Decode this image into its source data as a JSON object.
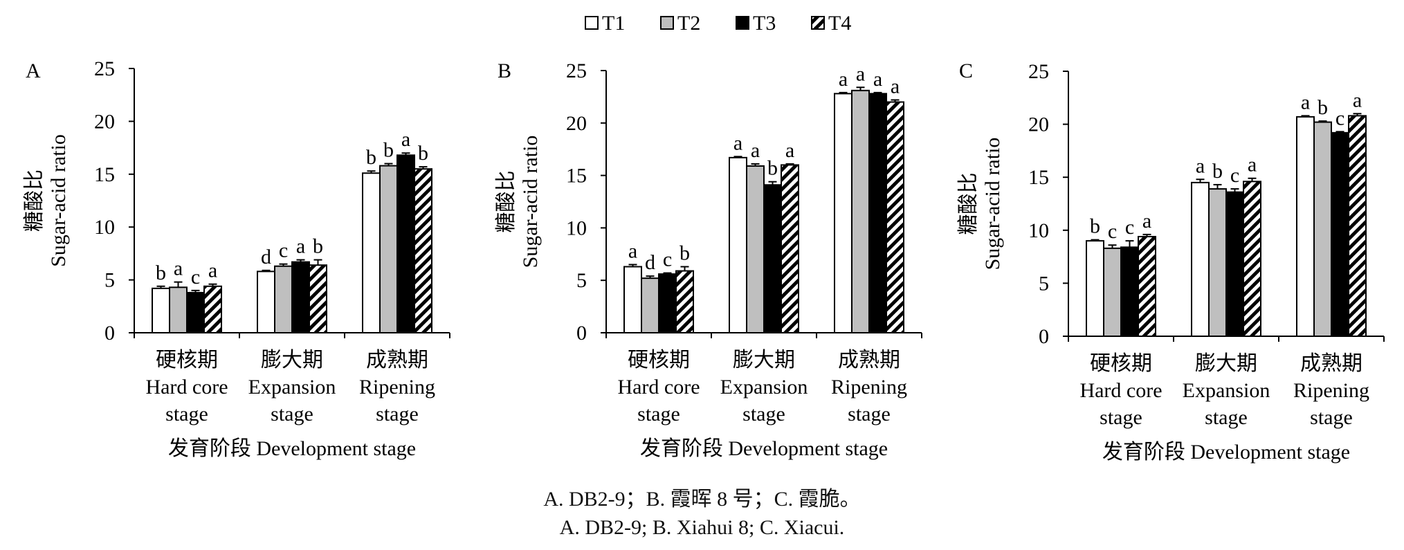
{
  "legend": [
    {
      "label": "T1",
      "pattern": "white"
    },
    {
      "label": "T2",
      "pattern": "gray"
    },
    {
      "label": "T3",
      "pattern": "black"
    },
    {
      "label": "T4",
      "pattern": "hatch"
    }
  ],
  "colors": {
    "T1": "#ffffff",
    "T2": "#bfbfbf",
    "T3": "#000000",
    "T4": "hatch-black-white",
    "stroke": "#000000"
  },
  "caption_cn": "A. DB2-9；B. 霞晖 8 号；C. 霞脆。",
  "caption_en": "A. DB2-9; B. Xiahui 8; C. Xiacui.",
  "chart_data": [
    {
      "panel": "A",
      "type": "bar",
      "ylabel_cn": "糖酸比",
      "ylabel_en": "Sugar-acid ratio",
      "xlabel": "发育阶段 Development stage",
      "ylim": [
        0,
        25
      ],
      "yticks": [
        "0",
        "5",
        "10",
        "15",
        "20",
        "25"
      ],
      "categories": [
        {
          "cn": "硬核期",
          "en1": "Hard core",
          "en2": "stage"
        },
        {
          "cn": "膨大期",
          "en1": "Expansion",
          "en2": "stage"
        },
        {
          "cn": "成熟期",
          "en1": "Ripening",
          "en2": "stage"
        }
      ],
      "series": [
        {
          "name": "T1",
          "values": [
            4.2,
            5.8,
            15.1
          ],
          "errors": [
            0.2,
            0.1,
            0.2
          ],
          "letters": [
            "b",
            "d",
            "b"
          ]
        },
        {
          "name": "T2",
          "values": [
            4.3,
            6.3,
            15.8
          ],
          "errors": [
            0.5,
            0.2,
            0.2
          ],
          "letters": [
            "a",
            "c",
            "b"
          ]
        },
        {
          "name": "T3",
          "values": [
            3.8,
            6.7,
            16.8
          ],
          "errors": [
            0.2,
            0.2,
            0.2
          ],
          "letters": [
            "c",
            "a",
            "a"
          ]
        },
        {
          "name": "T4",
          "values": [
            4.4,
            6.4,
            15.5
          ],
          "errors": [
            0.2,
            0.5,
            0.2
          ],
          "letters": [
            "a",
            "b",
            "b"
          ]
        }
      ]
    },
    {
      "panel": "B",
      "type": "bar",
      "ylabel_cn": "糖酸比",
      "ylabel_en": "Sugar-acid ratio",
      "xlabel": "发育阶段 Development stage",
      "ylim": [
        0,
        25
      ],
      "yticks": [
        "0",
        "5",
        "10",
        "15",
        "20",
        "25"
      ],
      "categories": [
        {
          "cn": "硬核期",
          "en1": "Hard core",
          "en2": "stage"
        },
        {
          "cn": "膨大期",
          "en1": "Expansion",
          "en2": "stage"
        },
        {
          "cn": "成熟期",
          "en1": "Ripening",
          "en2": "stage"
        }
      ],
      "series": [
        {
          "name": "T1",
          "values": [
            6.3,
            16.7,
            22.8
          ],
          "errors": [
            0.2,
            0.1,
            0.1
          ],
          "letters": [
            "a",
            "a",
            "a"
          ]
        },
        {
          "name": "T2",
          "values": [
            5.2,
            15.9,
            23.1
          ],
          "errors": [
            0.2,
            0.2,
            0.3
          ],
          "letters": [
            "d",
            "a",
            "a"
          ]
        },
        {
          "name": "T3",
          "values": [
            5.6,
            14.1,
            22.8
          ],
          "errors": [
            0.1,
            0.3,
            0.1
          ],
          "letters": [
            "c",
            "b",
            "a"
          ]
        },
        {
          "name": "T4",
          "values": [
            5.9,
            16.0,
            22.0
          ],
          "errors": [
            0.4,
            0.1,
            0.2
          ],
          "letters": [
            "b",
            "a",
            "a"
          ]
        }
      ]
    },
    {
      "panel": "C",
      "type": "bar",
      "ylabel_cn": "糖酸比",
      "ylabel_en": "Sugar-acid ratio",
      "xlabel": "发育阶段 Development stage",
      "ylim": [
        0,
        25
      ],
      "yticks": [
        "0",
        "5",
        "10",
        "15",
        "20",
        "25"
      ],
      "categories": [
        {
          "cn": "硬核期",
          "en1": "Hard core",
          "en2": "stage"
        },
        {
          "cn": "膨大期",
          "en1": "Expansion",
          "en2": "stage"
        },
        {
          "cn": "成熟期",
          "en1": "Ripening",
          "en2": "stage"
        }
      ],
      "series": [
        {
          "name": "T1",
          "values": [
            9.0,
            14.5,
            20.7
          ],
          "errors": [
            0.1,
            0.3,
            0.1
          ],
          "letters": [
            "b",
            "a",
            "a"
          ]
        },
        {
          "name": "T2",
          "values": [
            8.3,
            13.9,
            20.2
          ],
          "errors": [
            0.3,
            0.4,
            0.1
          ],
          "letters": [
            "c",
            "b",
            "b"
          ]
        },
        {
          "name": "T3",
          "values": [
            8.4,
            13.6,
            19.2
          ],
          "errors": [
            0.6,
            0.3,
            0.1
          ],
          "letters": [
            "c",
            "c",
            "c"
          ]
        },
        {
          "name": "T4",
          "values": [
            9.4,
            14.6,
            20.8
          ],
          "errors": [
            0.2,
            0.3,
            0.2
          ],
          "letters": [
            "a",
            "a",
            "a"
          ]
        }
      ]
    }
  ]
}
